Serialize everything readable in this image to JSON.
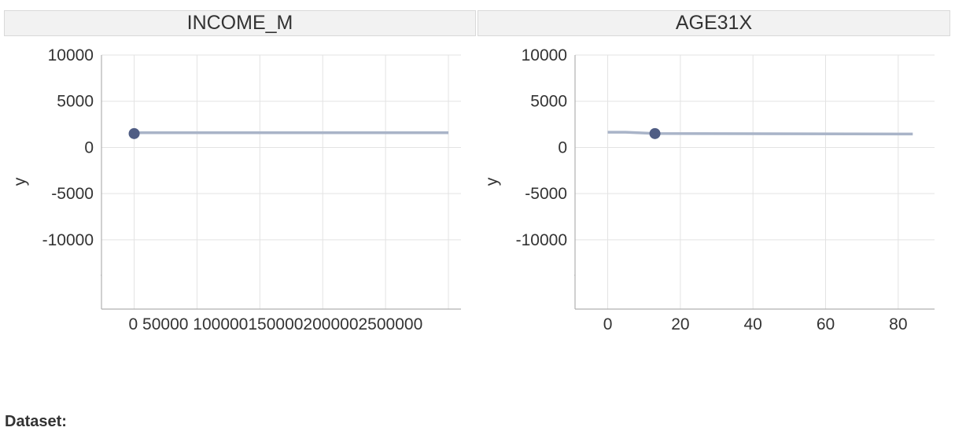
{
  "panels": [
    {
      "title": "INCOME_M",
      "ylabel": "y",
      "y_ticks": [
        10000,
        5000,
        0,
        -5000,
        -10000
      ],
      "x_ticks": [
        0,
        50000,
        100000,
        150000,
        200000,
        250000
      ],
      "x_tick_text": "0 50000 1000001500002000002500000"
    },
    {
      "title": "AGE31X",
      "ylabel": "y",
      "y_ticks": [
        10000,
        5000,
        0,
        -5000,
        -10000
      ],
      "x_ticks": [
        0,
        20,
        40,
        60,
        80
      ],
      "x_tick_text": ""
    }
  ],
  "footer": {
    "dataset_label": "Dataset:"
  },
  "colors": {
    "line": "#a9b4c8",
    "point": "#4f5d84",
    "grid": "#e3e3e3",
    "axis": "#b0b0b0"
  },
  "chart_data": [
    {
      "type": "line",
      "title": "INCOME_M",
      "xlabel": "",
      "ylabel": "y",
      "xlim": [
        -26000,
        260000
      ],
      "ylim": [
        -17500,
        10000
      ],
      "series": [
        {
          "x": [
            0,
            250000
          ],
          "y": [
            1600,
            1600
          ]
        }
      ],
      "point": {
        "x": 0,
        "y": 1500
      },
      "grid": true
    },
    {
      "type": "line",
      "title": "AGE31X",
      "xlabel": "",
      "ylabel": "y",
      "xlim": [
        -9,
        90
      ],
      "ylim": [
        -17500,
        10000
      ],
      "series": [
        {
          "x": [
            0,
            5,
            13,
            84
          ],
          "y": [
            1650,
            1650,
            1500,
            1450
          ]
        }
      ],
      "point": {
        "x": 13,
        "y": 1500
      },
      "grid": true
    }
  ]
}
